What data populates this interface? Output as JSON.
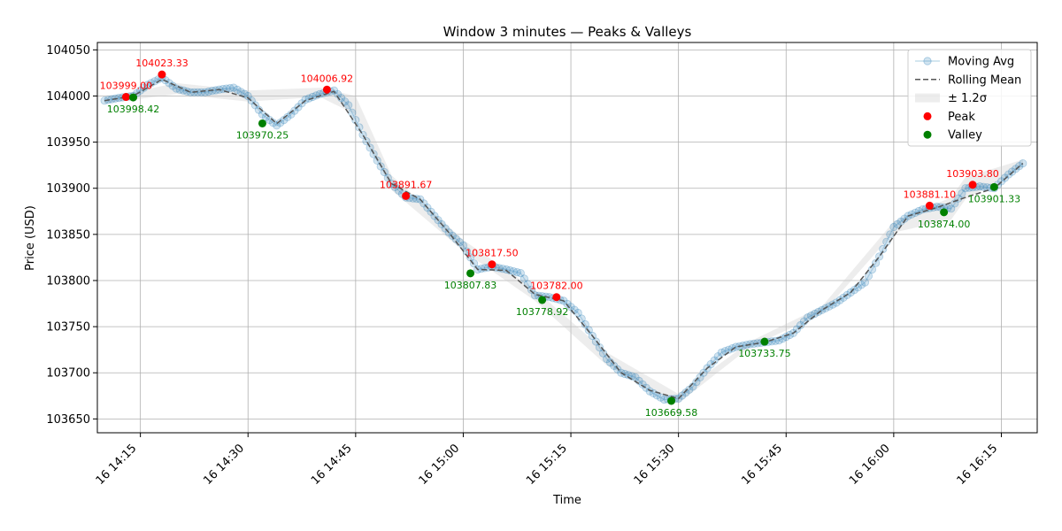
{
  "chart_data": {
    "type": "line",
    "title": "Window 3 minutes — Peaks & Valleys",
    "xlabel": "Time",
    "ylabel": "Price (USD)",
    "grid": true,
    "legend_position": "top-right",
    "xlim": [
      "16 14:09",
      "16 16:20"
    ],
    "ylim": [
      103635,
      104058
    ],
    "x_ticks": [
      "16 14:15",
      "16 14:30",
      "16 14:45",
      "16 15:00",
      "16 15:15",
      "16 15:30",
      "16 15:45",
      "16 16:00",
      "16 16:15"
    ],
    "y_ticks": [
      103650,
      103700,
      103750,
      103800,
      103850,
      103900,
      103950,
      104000,
      104050
    ],
    "colors": {
      "moving_avg": "#1f77b4",
      "rolling_mean": "#555555",
      "band": "#cccccc",
      "peak": "#ff0000",
      "valley": "#008000"
    },
    "legend": [
      {
        "key": "moving_avg",
        "label": "Moving Avg"
      },
      {
        "key": "rolling_mean",
        "label": "Rolling Mean"
      },
      {
        "key": "band",
        "label": "± 1.2σ"
      },
      {
        "key": "peak",
        "label": "Peak"
      },
      {
        "key": "valley",
        "label": "Valley"
      }
    ],
    "series": [
      {
        "name": "Moving Avg",
        "x": [
          "16 14:10",
          "16 14:12",
          "16 14:14",
          "16 14:16",
          "16 14:18",
          "16 14:20",
          "16 14:22",
          "16 14:24",
          "16 14:26",
          "16 14:28",
          "16 14:30",
          "16 14:32",
          "16 14:34",
          "16 14:36",
          "16 14:38",
          "16 14:40",
          "16 14:42",
          "16 14:44",
          "16 14:46",
          "16 14:48",
          "16 14:50",
          "16 14:52",
          "16 14:54",
          "16 14:56",
          "16 14:58",
          "16 15:00",
          "16 15:02",
          "16 15:04",
          "16 15:06",
          "16 15:08",
          "16 15:10",
          "16 15:12",
          "16 15:14",
          "16 15:16",
          "16 15:18",
          "16 15:20",
          "16 15:22",
          "16 15:24",
          "16 15:26",
          "16 15:28",
          "16 15:30",
          "16 15:32",
          "16 15:34",
          "16 15:36",
          "16 15:38",
          "16 15:40",
          "16 15:42",
          "16 15:44",
          "16 15:46",
          "16 15:48",
          "16 15:50",
          "16 15:52",
          "16 15:54",
          "16 15:56",
          "16 15:58",
          "16 16:00",
          "16 16:02",
          "16 16:04",
          "16 16:06",
          "16 16:08",
          "16 16:10",
          "16 16:12",
          "16 16:14",
          "16 16:16",
          "16 16:18"
        ],
        "values": [
          103995,
          103998,
          104000,
          104012,
          104020,
          104008,
          104004,
          104004,
          104007,
          104009,
          104000,
          103980,
          103968,
          103980,
          103996,
          104002,
          104006,
          103990,
          103958,
          103930,
          103905,
          103890,
          103888,
          103870,
          103852,
          103838,
          103812,
          103815,
          103812,
          103808,
          103784,
          103782,
          103778,
          103765,
          103740,
          103715,
          103700,
          103695,
          103680,
          103671,
          103672,
          103685,
          103705,
          103722,
          103728,
          103731,
          103733,
          103735,
          103743,
          103760,
          103768,
          103776,
          103787,
          103798,
          103826,
          103858,
          103870,
          103877,
          103880,
          103878,
          103900,
          103902,
          103900,
          103915,
          103927
        ]
      },
      {
        "name": "Rolling Mean",
        "x": [
          "16 14:10",
          "16 14:14",
          "16 14:18",
          "16 14:22",
          "16 14:26",
          "16 14:30",
          "16 14:34",
          "16 14:38",
          "16 14:42",
          "16 14:46",
          "16 14:50",
          "16 14:54",
          "16 14:58",
          "16 15:02",
          "16 15:06",
          "16 15:10",
          "16 15:14",
          "16 15:18",
          "16 15:22",
          "16 15:26",
          "16 15:30",
          "16 15:34",
          "16 15:38",
          "16 15:42",
          "16 15:46",
          "16 15:50",
          "16 15:54",
          "16 15:58",
          "16 16:02",
          "16 16:06",
          "16 16:10",
          "16 16:14",
          "16 16:18"
        ],
        "values": [
          103995,
          104000,
          104018,
          104004,
          104007,
          103998,
          103970,
          103995,
          104005,
          103958,
          103905,
          103888,
          103852,
          103812,
          103811,
          103785,
          103778,
          103740,
          103700,
          103681,
          103672,
          103705,
          103728,
          103733,
          103743,
          103768,
          103787,
          103826,
          103870,
          103879,
          103890,
          103900,
          103927
        ]
      }
    ],
    "band": {
      "label": "± 1.2σ",
      "x": [
        "16 14:10",
        "16 14:20",
        "16 14:30",
        "16 14:40",
        "16 14:45",
        "16 14:50",
        "16 15:00",
        "16 15:10",
        "16 15:20",
        "16 15:30",
        "16 15:40",
        "16 15:50",
        "16 16:00",
        "16 16:08",
        "16 16:10",
        "16 16:18"
      ],
      "lower": [
        103992,
        104002,
        103994,
        103999,
        103980,
        103898,
        103832,
        103778,
        103708,
        103667,
        103728,
        103764,
        103852,
        103866,
        103888,
        103923
      ],
      "upper": [
        103998,
        104014,
        104006,
        104009,
        104000,
        103914,
        103844,
        103790,
        103722,
        103677,
        103734,
        103772,
        103864,
        103890,
        103912,
        103931
      ]
    },
    "peaks": [
      {
        "x": "16 14:13",
        "value": 103999.0,
        "label": "103999.00"
      },
      {
        "x": "16 14:18",
        "value": 104023.33,
        "label": "104023.33"
      },
      {
        "x": "16 14:41",
        "value": 104006.92,
        "label": "104006.92"
      },
      {
        "x": "16 14:52",
        "value": 103891.67,
        "label": "103891.67"
      },
      {
        "x": "16 15:04",
        "value": 103817.5,
        "label": "103817.50"
      },
      {
        "x": "16 15:13",
        "value": 103782.0,
        "label": "103782.00"
      },
      {
        "x": "16 16:05",
        "value": 103881.1,
        "label": "103881.10"
      },
      {
        "x": "16 16:11",
        "value": 103903.8,
        "label": "103903.80"
      }
    ],
    "valleys": [
      {
        "x": "16 14:14",
        "value": 103998.42,
        "label": "103998.42"
      },
      {
        "x": "16 14:32",
        "value": 103970.25,
        "label": "103970.25"
      },
      {
        "x": "16 15:01",
        "value": 103807.83,
        "label": "103807.83"
      },
      {
        "x": "16 15:11",
        "value": 103778.92,
        "label": "103778.92"
      },
      {
        "x": "16 15:29",
        "value": 103669.58,
        "label": "103669.58"
      },
      {
        "x": "16 15:42",
        "value": 103733.75,
        "label": "103733.75"
      },
      {
        "x": "16 16:07",
        "value": 103874.0,
        "label": "103874.00"
      },
      {
        "x": "16 16:14",
        "value": 103901.33,
        "label": "103901.33"
      }
    ]
  }
}
